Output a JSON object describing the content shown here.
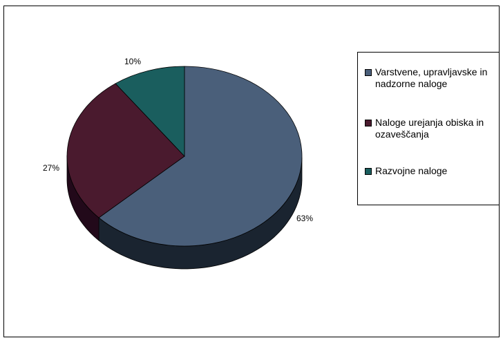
{
  "chart_data": {
    "type": "pie",
    "style": "3d",
    "slices": [
      {
        "label": "Varstvene, upravljavske in nadzorne naloge",
        "value": 63,
        "value_label": "63%",
        "color": "#4a5f7a",
        "side_color": "#1a2430"
      },
      {
        "label": "Naloge urejanja obiska in ozaveščanja",
        "value": 27,
        "value_label": "27%",
        "color": "#4a1a2e",
        "side_color": "#22091a"
      },
      {
        "label": "Razvojne naloge",
        "value": 10,
        "value_label": "10%",
        "color": "#1a5e5e",
        "side_color": "#0b2828"
      }
    ],
    "legend_position": "right"
  }
}
